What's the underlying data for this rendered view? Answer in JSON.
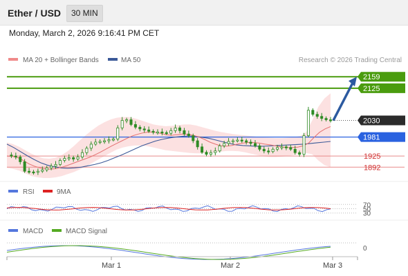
{
  "header": {
    "title": "Ether / USD",
    "timeframe": "30 MIN"
  },
  "timestamp": "Monday, March 2, 2026 9:16:41 PM CET",
  "credit": "Research © 2026 Trading Central",
  "legend": {
    "ma20_bb": "MA 20 + Bollinger Bands",
    "ma50": "MA 50",
    "rsi": "RSI",
    "rsi_ma": "9MA",
    "macd": "MACD",
    "macd_signal": "MACD Signal"
  },
  "colors": {
    "price_candle": "#2e8b24",
    "ma20": "#e37070",
    "bollinger_fill": "#fbdcdc",
    "ma50": "#3b5998",
    "resistance": "#4a9c0e",
    "pivot": "#2a62e0",
    "support": "#e88a8a",
    "current": "#222222",
    "projection_arrow": "#2c5aa0",
    "rsi": "#5577dd",
    "rsi_ma": "#dd2222",
    "macd": "#5577dd",
    "macd_signal": "#55aa22"
  },
  "chart_data": [
    {
      "type": "line",
      "subtype": "candlestick",
      "title": "Ether / USD",
      "xlabel": "",
      "ylabel": "",
      "x_ticks": [
        "Mar 1",
        "Mar 2",
        "Mar 3"
      ],
      "ylim": [
        1860,
        2190
      ],
      "levels": [
        {
          "label": "2159",
          "value": 2159,
          "kind": "resistance"
        },
        {
          "label": "2125",
          "value": 2125,
          "kind": "resistance"
        },
        {
          "label": "2030",
          "value": 2030,
          "kind": "current"
        },
        {
          "label": "1981",
          "value": 1981,
          "kind": "pivot"
        },
        {
          "label": "1925",
          "value": 1925,
          "kind": "support"
        },
        {
          "label": "1892",
          "value": 1892,
          "kind": "support"
        }
      ],
      "price_path": [
        1928,
        1925,
        1922,
        1908,
        1880,
        1878,
        1877,
        1880,
        1884,
        1890,
        1895,
        1900,
        1912,
        1918,
        1920,
        1916,
        1922,
        1935,
        1948,
        1960,
        1966,
        1968,
        1970,
        1973,
        1975,
        2008,
        2030,
        2032,
        2018,
        2010,
        2005,
        2002,
        1998,
        1995,
        1996,
        1994,
        1992,
        2000,
        2008,
        2000,
        1990,
        1985,
        1970,
        1952,
        1936,
        1930,
        1935,
        1940,
        1955,
        1962,
        1968,
        1970,
        1972,
        1970,
        1966,
        1962,
        1955,
        1945,
        1940,
        1938,
        1945,
        1950,
        1952,
        1950,
        1945,
        1935,
        1930,
        1985,
        2060,
        2048,
        2042,
        2036,
        2032,
        2030
      ],
      "ma20_path": [
        1925,
        1924,
        1920,
        1912,
        1902,
        1895,
        1890,
        1887,
        1886,
        1888,
        1892,
        1897,
        1903,
        1909,
        1915,
        1921,
        1928,
        1936,
        1945,
        1954,
        1962,
        1970,
        1978,
        1985,
        1990,
        1994,
        1996,
        1995,
        1992,
        1988,
        1986,
        1988,
        1990,
        1989,
        1986,
        1981,
        1974,
        1966,
        1960,
        1955,
        1954,
        1956,
        1960,
        1963,
        1965,
        1965,
        1963,
        1960,
        1958,
        1955,
        1952,
        1950,
        1950,
        1951,
        1955,
        1963,
        1980,
        1995,
        2005,
        2012
      ],
      "ma50_path": [
        1960,
        1950,
        1938,
        1926,
        1915,
        1905,
        1898,
        1893,
        1890,
        1889,
        1890,
        1892,
        1896,
        1900,
        1905,
        1912,
        1920,
        1928,
        1937,
        1946,
        1955,
        1962,
        1969,
        1974,
        1978,
        1981,
        1983,
        1984,
        1983,
        1980,
        1977,
        1972,
        1967,
        1962,
        1958,
        1956,
        1955,
        1954,
        1954,
        1955,
        1956,
        1957,
        1958,
        1959,
        1960,
        1962,
        1964,
        1966,
        1968
      ],
      "bb_upper": [
        1965,
        1960,
        1952,
        1942,
        1932,
        1924,
        1918,
        1917,
        1920,
        1928,
        1940,
        1955,
        1972,
        1988,
        2002,
        2015,
        2025,
        2033,
        2038,
        2040,
        2040,
        2036,
        2030,
        2024,
        2018,
        2015,
        2013,
        2014,
        2016,
        2018,
        2018,
        2015,
        2010,
        2005,
        2000,
        1996,
        1993,
        1990,
        1988,
        1986,
        1984,
        1982,
        1980,
        1979,
        1978,
        1978,
        1979,
        1981,
        1984,
        1995,
        2030,
        2070,
        2095,
        2110
      ],
      "bb_lower": [
        1890,
        1887,
        1882,
        1874,
        1866,
        1862,
        1860,
        1860,
        1862,
        1866,
        1872,
        1878,
        1886,
        1895,
        1905,
        1915,
        1925,
        1935,
        1944,
        1950,
        1954,
        1956,
        1956,
        1954,
        1950,
        1946,
        1942,
        1940,
        1938,
        1936,
        1934,
        1933,
        1933,
        1934,
        1936,
        1938,
        1940,
        1940,
        1939,
        1936,
        1932,
        1928,
        1924,
        1922,
        1922,
        1923,
        1925,
        1928,
        1932,
        1934,
        1930,
        1912,
        1898,
        1892
      ],
      "projection": {
        "from": 2030,
        "to": 2159
      }
    },
    {
      "type": "line",
      "title": "RSI",
      "series": [
        {
          "name": "RSI"
        },
        {
          "name": "9MA"
        }
      ],
      "y_ticks": [
        70,
        50,
        30
      ],
      "ylim": [
        0,
        100
      ]
    },
    {
      "type": "line",
      "title": "MACD",
      "series": [
        {
          "name": "MACD"
        },
        {
          "name": "MACD Signal"
        }
      ],
      "y_ticks": [
        0
      ]
    }
  ]
}
